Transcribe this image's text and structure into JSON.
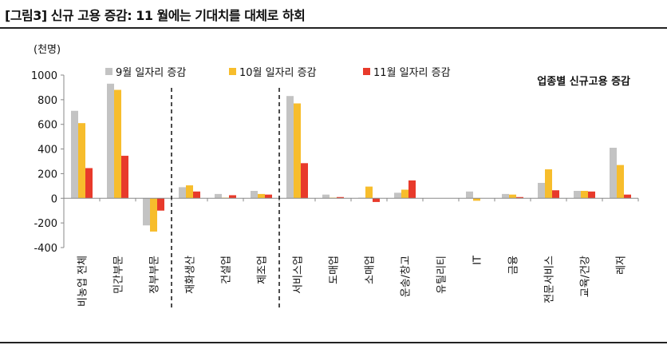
{
  "title": "[그림3] 신규 고용 증감: 11 월에는 기대치를 대체로 하회",
  "chart_data": {
    "type": "bar",
    "unit_label": "(천명)",
    "annotation": "업종별 신규고용 증감",
    "ylim": [
      -400,
      1000
    ],
    "yticks": [
      1000,
      800,
      600,
      400,
      200,
      0,
      -200,
      -400
    ],
    "ytick_labels": [
      "1000",
      "800",
      "600",
      "400",
      "200",
      "0",
      "-200",
      "-400"
    ],
    "categories": [
      "비농업 전체",
      "민간부문",
      "정부부문",
      "재화생산",
      "건설업",
      "제조업",
      "서비스업",
      "도매업",
      "소매업",
      "운송/창고",
      "유틸리티",
      "IT",
      "금융",
      "전문서비스",
      "교육/건강",
      "레저"
    ],
    "series": [
      {
        "name": "9월 일자리 증감",
        "color": "#c3c3c3",
        "values": [
          710,
          930,
          -220,
          90,
          35,
          60,
          830,
          30,
          5,
          45,
          0,
          55,
          35,
          125,
          60,
          410
        ]
      },
      {
        "name": "10월 일자리 증감",
        "color": "#f7bd2c",
        "values": [
          610,
          880,
          -270,
          105,
          5,
          35,
          770,
          5,
          95,
          70,
          0,
          -20,
          30,
          235,
          60,
          270
        ]
      },
      {
        "name": "11월 일자리 증감",
        "color": "#e83a2b",
        "values": [
          245,
          345,
          -100,
          55,
          25,
          30,
          285,
          10,
          -30,
          145,
          0,
          0,
          10,
          65,
          55,
          30
        ]
      }
    ],
    "separators_after_index": [
      2,
      5
    ],
    "legend_position": "top"
  }
}
